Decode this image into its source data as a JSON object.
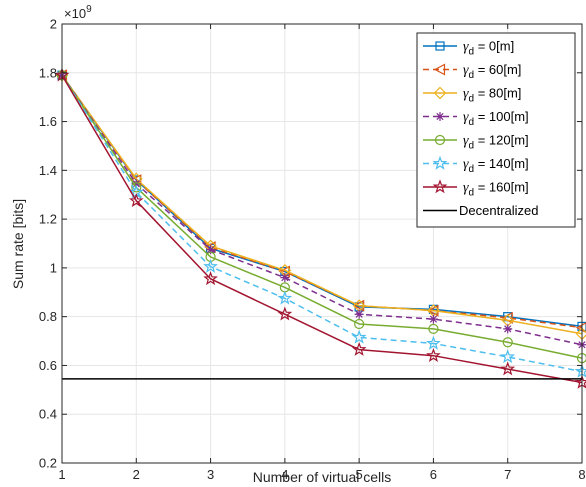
{
  "chart_data": {
    "type": "line",
    "title": "",
    "xlabel": "Number of virtual cells",
    "ylabel": "Sum rate [bits]",
    "y_exponent_label": "×10",
    "y_exponent_power": "9",
    "xlim": [
      1,
      8
    ],
    "ylim": [
      0.2,
      2.0
    ],
    "x_ticks": [
      1,
      2,
      3,
      4,
      5,
      6,
      7,
      8
    ],
    "x_tick_labels": [
      "1",
      "2",
      "3",
      "4",
      "5",
      "6",
      "7",
      "8"
    ],
    "y_ticks": [
      0.2,
      0.4,
      0.6,
      0.8,
      1.0,
      1.2,
      1.4,
      1.6,
      1.8,
      2.0
    ],
    "y_tick_labels": [
      "0.2",
      "0.4",
      "0.6",
      "0.8",
      "1",
      "1.2",
      "1.4",
      "1.6",
      "1.8",
      "2"
    ],
    "grid": true,
    "legend_position": "top-right",
    "x": [
      1,
      2,
      3,
      4,
      5,
      6,
      7,
      8
    ],
    "series": [
      {
        "symbol": "γ",
        "subscript": "d",
        "suffix": " = 0[m]",
        "color": "#0072BD",
        "dash": "solid",
        "marker": "square",
        "values": [
          1.79,
          1.36,
          1.08,
          0.985,
          0.84,
          0.83,
          0.8,
          0.76
        ]
      },
      {
        "symbol": "γ",
        "subscript": "d",
        "suffix": " = 60[m]",
        "color": "#D95319",
        "dash": "dashed",
        "marker": "triangle-left",
        "values": [
          1.79,
          1.36,
          1.085,
          0.985,
          0.845,
          0.825,
          0.795,
          0.755
        ]
      },
      {
        "symbol": "γ",
        "subscript": "d",
        "suffix": " = 80[m]",
        "color": "#EDB120",
        "dash": "solid",
        "marker": "diamond",
        "values": [
          1.79,
          1.365,
          1.09,
          0.99,
          0.845,
          0.825,
          0.785,
          0.73
        ]
      },
      {
        "symbol": "γ",
        "subscript": "d",
        "suffix": " = 100[m]",
        "color": "#7E2F8E",
        "dash": "dashed",
        "marker": "asterisk",
        "values": [
          1.79,
          1.345,
          1.075,
          0.96,
          0.81,
          0.79,
          0.75,
          0.685
        ]
      },
      {
        "symbol": "γ",
        "subscript": "d",
        "suffix": " = 120[m]",
        "color": "#77AC30",
        "dash": "solid",
        "marker": "circle",
        "values": [
          1.79,
          1.33,
          1.045,
          0.92,
          0.77,
          0.75,
          0.695,
          0.63
        ]
      },
      {
        "symbol": "γ",
        "subscript": "d",
        "suffix": " = 140[m]",
        "color": "#4DBEEE",
        "dash": "dashed",
        "marker": "pentagram",
        "values": [
          1.79,
          1.31,
          1.005,
          0.875,
          0.715,
          0.69,
          0.635,
          0.575
        ]
      },
      {
        "symbol": "γ",
        "subscript": "d",
        "suffix": " = 160[m]",
        "color": "#A2142F",
        "dash": "solid",
        "marker": "pentagram",
        "values": [
          1.79,
          1.275,
          0.955,
          0.81,
          0.665,
          0.64,
          0.585,
          0.53
        ]
      },
      {
        "label": "Decentralized",
        "color": "#000000",
        "dash": "solid",
        "marker": "none",
        "values": [
          0.545,
          0.545,
          0.545,
          0.545,
          0.545,
          0.545,
          0.545,
          0.545
        ]
      }
    ]
  }
}
